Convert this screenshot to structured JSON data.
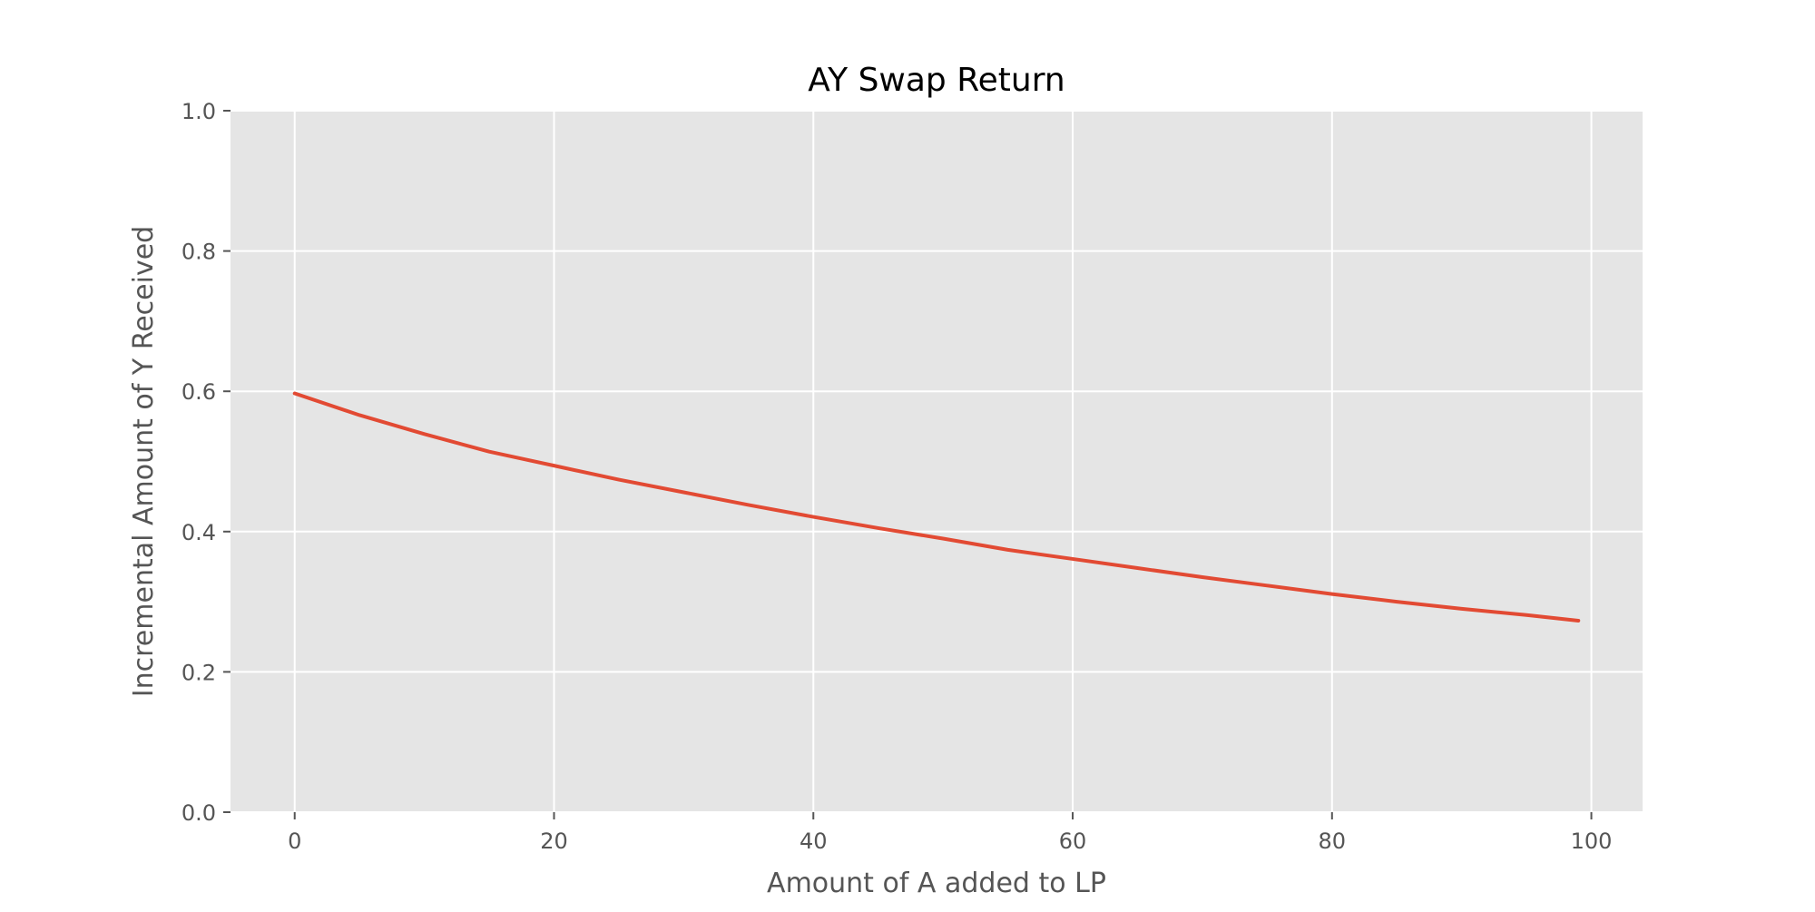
{
  "chart_data": {
    "type": "line",
    "title": "AY Swap Return",
    "xlabel": "Amount of A added to LP",
    "ylabel": "Incremental Amount of Y Received",
    "xlim": [
      -4.95,
      103.95
    ],
    "ylim": [
      0,
      1.0
    ],
    "x_ticks": [
      0,
      20,
      40,
      60,
      80,
      100
    ],
    "y_ticks": [
      0.0,
      0.2,
      0.4,
      0.6,
      0.8,
      1.0
    ],
    "x_tick_labels": [
      "0",
      "20",
      "40",
      "60",
      "80",
      "100"
    ],
    "y_tick_labels": [
      "0.0",
      "0.2",
      "0.4",
      "0.6",
      "0.8",
      "1.0"
    ],
    "grid": true,
    "legend": "none",
    "colors": {
      "plot_background": "#e5e5e5",
      "grid": "#ffffff",
      "line": "#e24a33"
    },
    "series": [
      {
        "x": [
          0,
          5,
          10,
          15,
          20,
          25,
          30,
          35,
          40,
          45,
          50,
          55,
          60,
          65,
          70,
          75,
          80,
          85,
          90,
          95,
          99
        ],
        "y": [
          0.597,
          0.566,
          0.539,
          0.514,
          0.494,
          0.474,
          0.456,
          0.438,
          0.421,
          0.405,
          0.39,
          0.374,
          0.361,
          0.348,
          0.335,
          0.323,
          0.311,
          0.3,
          0.29,
          0.281,
          0.273
        ]
      }
    ]
  }
}
